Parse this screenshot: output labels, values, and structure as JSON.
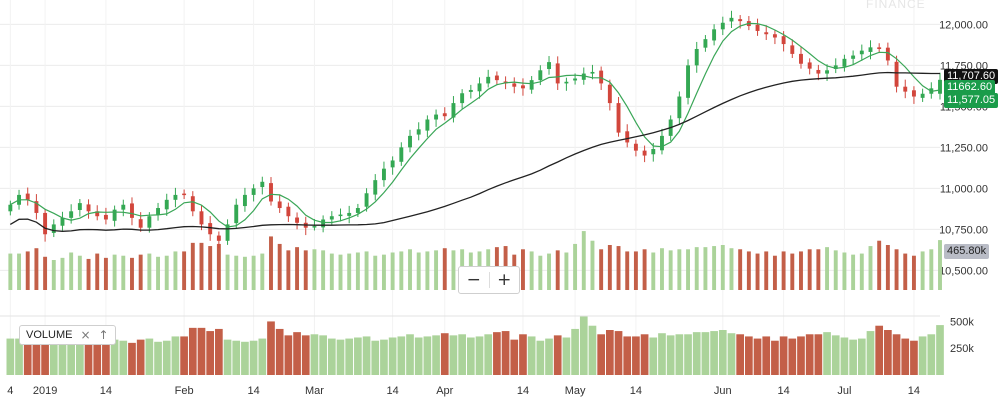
{
  "chart_data": {
    "type": "candlestick",
    "watermark": "FINANCE",
    "y_ticks": [
      10500,
      10750,
      11000,
      11250,
      11500,
      11750,
      12000
    ],
    "y_tick_labels": [
      "10,500.00",
      "10,750.00",
      "11,000.00",
      "11,250.00",
      "11,500.00",
      "11,750.00",
      "12,000.00"
    ],
    "ylim": [
      10380,
      12100
    ],
    "x_labels": [
      {
        "i": 0,
        "label": "4"
      },
      {
        "i": 4,
        "label": "2019"
      },
      {
        "i": 11,
        "label": "14"
      },
      {
        "i": 20,
        "label": "Feb"
      },
      {
        "i": 28,
        "label": "14"
      },
      {
        "i": 35,
        "label": "Mar"
      },
      {
        "i": 44,
        "label": "14"
      },
      {
        "i": 50,
        "label": "Apr"
      },
      {
        "i": 59,
        "label": "14"
      },
      {
        "i": 65,
        "label": "May"
      },
      {
        "i": 72,
        "label": "14"
      },
      {
        "i": 82,
        "label": "Jun"
      },
      {
        "i": 89,
        "label": "14"
      },
      {
        "i": 96,
        "label": "Jul"
      },
      {
        "i": 104,
        "label": "14"
      }
    ],
    "closes": [
      10900,
      10960,
      10930,
      10850,
      10720,
      10780,
      10820,
      10860,
      10910,
      10860,
      10830,
      10810,
      10870,
      10900,
      10820,
      10760,
      10830,
      10880,
      10930,
      10960,
      10960,
      10860,
      10780,
      10720,
      10680,
      10780,
      10900,
      10960,
      11000,
      11040,
      10920,
      10880,
      10830,
      10790,
      10760,
      10770,
      10810,
      10830,
      10840,
      10850,
      10880,
      10970,
      11050,
      11120,
      11170,
      11250,
      11320,
      11360,
      11420,
      11450,
      11440,
      11520,
      11580,
      11600,
      11640,
      11680,
      11660,
      11640,
      11620,
      11610,
      11660,
      11720,
      11770,
      11640,
      11650,
      11670,
      11700,
      11710,
      11640,
      11520,
      11340,
      11280,
      11230,
      11200,
      11240,
      11320,
      11420,
      11560,
      11750,
      11850,
      11910,
      11970,
      12010,
      12040,
      12020,
      11990,
      11960,
      11940,
      11920,
      11880,
      11820,
      11760,
      11730,
      11700,
      11720,
      11750,
      11790,
      11810,
      11840,
      11860,
      11850,
      11780,
      11620,
      11590,
      11560,
      11577,
      11610,
      11662
    ],
    "sma20_at_end": 11707.6,
    "last_close": 11662.6,
    "last_open": 11577.05,
    "price_badges": [
      "11,707.60",
      "11662.60",
      "11,577.05"
    ],
    "volume": {
      "label": "VOLUME",
      "y_tick_labels": [
        "500k",
        "250k"
      ],
      "last_label": "465.80k",
      "values": [
        340,
        340,
        360,
        390,
        310,
        280,
        300,
        350,
        320,
        290,
        340,
        300,
        330,
        320,
        300,
        330,
        340,
        310,
        320,
        360,
        360,
        440,
        440,
        410,
        430,
        330,
        320,
        310,
        320,
        340,
        500,
        430,
        370,
        400,
        370,
        380,
        370,
        340,
        330,
        340,
        350,
        360,
        320,
        330,
        350,
        360,
        380,
        350,
        360,
        370,
        390,
        370,
        380,
        350,
        360,
        380,
        400,
        410,
        330,
        380,
        360,
        320,
        340,
        370,
        350,
        430,
        550,
        460,
        380,
        420,
        410,
        360,
        360,
        380,
        350,
        390,
        370,
        380,
        380,
        400,
        400,
        410,
        420,
        390,
        380,
        360,
        340,
        360,
        320,
        360,
        340,
        360,
        380,
        380,
        400,
        370,
        350,
        330,
        340,
        410,
        460,
        420,
        380,
        340,
        320,
        360,
        380,
        465.8
      ]
    },
    "colors": {
      "up": "#34a853",
      "down": "#d2463c",
      "vol_up": "#abd39a",
      "vol_down": "#c35f48",
      "sma": "#222222",
      "ema": "#3aa657"
    }
  },
  "controls": {
    "zoom_out": "−",
    "zoom_in": "+",
    "close_glyph": "×",
    "move_glyph": "↑"
  }
}
